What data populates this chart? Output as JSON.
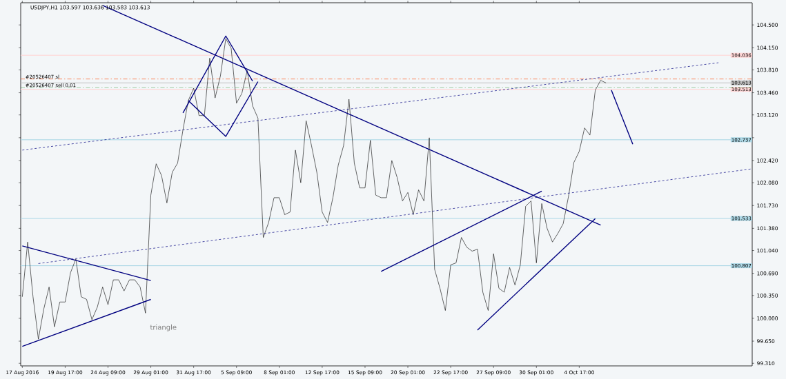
{
  "chart_data": {
    "type": "line",
    "title": "USDJPY,H1  103.597 103.636 103.583 103.613",
    "categories": [
      "17 Aug 2016",
      null,
      null,
      null,
      null,
      null,
      null,
      null,
      "19 Aug 17:00",
      null,
      null,
      null,
      null,
      null,
      null,
      null,
      "24 Aug 09:00",
      null,
      null,
      null,
      null,
      null,
      null,
      null,
      "29 Aug 01:00",
      null,
      null,
      null,
      null,
      null,
      null,
      null,
      "31 Aug 17:00",
      null,
      null,
      null,
      null,
      null,
      null,
      null,
      "5 Sep 09:00",
      null,
      null,
      null,
      null,
      null,
      null,
      null,
      "8 Sep 01:00",
      null,
      null,
      null,
      null,
      null,
      null,
      null,
      "12 Sep 17:00",
      null,
      null,
      null,
      null,
      null,
      null,
      null,
      "15 Sep 09:00",
      null,
      null,
      null,
      null,
      null,
      null,
      null,
      "20 Sep 01:00",
      null,
      null,
      null,
      null,
      null,
      null,
      null,
      "22 Sep 17:00",
      null,
      null,
      null,
      null,
      null,
      null,
      null,
      "27 Sep 09:00",
      null,
      null,
      null,
      null,
      null,
      null,
      null,
      "30 Sep 01:00",
      null,
      null,
      null,
      null,
      null,
      null,
      null,
      "4 Oct 17:00",
      null,
      null,
      null,
      null,
      null,
      null,
      null,
      null,
      null,
      null,
      null,
      null,
      null,
      null,
      null,
      null,
      null,
      null,
      null,
      null,
      null,
      null,
      null,
      null,
      null,
      null,
      null,
      null,
      null,
      null,
      null,
      null
    ],
    "ylim": [
      99.27,
      104.84
    ],
    "yticks": [
      {
        "value": 104.5,
        "label": "104.500"
      },
      {
        "value": 104.15,
        "label": "104.150"
      },
      {
        "value": 103.81,
        "label": "103.810"
      },
      {
        "value": 103.46,
        "label": "103.460"
      },
      {
        "value": 103.12,
        "label": "103.120"
      },
      {
        "value": 102.77,
        "label": null
      },
      {
        "value": 102.42,
        "label": "102.420"
      },
      {
        "value": 102.08,
        "label": "102.080"
      },
      {
        "value": 101.73,
        "label": "101.730"
      },
      {
        "value": 101.38,
        "label": "101.380"
      },
      {
        "value": 101.04,
        "label": "101.040"
      },
      {
        "value": 100.69,
        "label": "100.690"
      },
      {
        "value": 100.35,
        "label": "100.350"
      },
      {
        "value": 100.0,
        "label": "100.000"
      },
      {
        "value": 99.65,
        "label": "99.650"
      },
      {
        "value": 99.31,
        "label": "99.310"
      }
    ],
    "series": [
      {
        "color": "#000000",
        "values": [
          100.33,
          101.17,
          100.33,
          99.68,
          100.14,
          100.48,
          99.87,
          100.25,
          100.25,
          100.7,
          100.91,
          100.33,
          100.29,
          99.98,
          100.17,
          100.48,
          100.21,
          100.59,
          100.59,
          100.42,
          100.59,
          100.59,
          100.48,
          100.08,
          101.89,
          102.37,
          102.19,
          101.77,
          102.24,
          102.38,
          102.89,
          103.34,
          103.53,
          103.11,
          103.11,
          103.99,
          103.38,
          103.72,
          104.29,
          104.14,
          103.3,
          103.45,
          103.8,
          103.26,
          103.07,
          101.24,
          101.47,
          101.85,
          101.85,
          101.59,
          101.63,
          102.58,
          102.08,
          103.03,
          102.65,
          102.24,
          101.63,
          101.47,
          101.85,
          102.35,
          102.65,
          103.36,
          102.38,
          102.0,
          102.0,
          102.73,
          101.89,
          101.85,
          101.85,
          102.42,
          102.16,
          101.8,
          101.93,
          101.59,
          101.97,
          101.8,
          102.77,
          100.75,
          100.46,
          100.12,
          100.82,
          100.85,
          101.24,
          101.09,
          101.03,
          101.06,
          100.4,
          100.12,
          100.99,
          100.46,
          100.4,
          100.78,
          100.51,
          100.82,
          101.72,
          101.8,
          100.85,
          101.76,
          101.38,
          101.17,
          101.3,
          101.45,
          101.87,
          102.39,
          102.56,
          102.92,
          102.81,
          103.5,
          103.65,
          103.61,
          null,
          null,
          null,
          null,
          null,
          null,
          null,
          null,
          null,
          null,
          null,
          null,
          null,
          null,
          null,
          null,
          null,
          null,
          null,
          null,
          null,
          null,
          null,
          null,
          null,
          null,
          null
        ]
      },
      {
        "color": "#000080",
        "values": [
          null,
          null,
          null,
          null,
          null,
          null,
          null,
          null,
          null,
          null,
          null,
          null,
          null,
          null,
          null,
          104.8,
          null,
          null,
          null,
          null,
          null,
          null,
          null,
          null,
          null,
          null,
          null,
          null,
          null,
          null,
          null,
          null,
          null,
          null,
          null,
          null,
          null,
          null,
          null,
          null,
          null,
          null,
          null,
          null,
          null,
          null,
          null,
          null,
          null,
          null,
          null,
          null,
          null,
          null,
          null,
          null,
          null,
          null,
          null,
          null,
          null,
          null,
          null,
          null,
          null,
          null,
          null,
          null,
          null,
          null,
          null,
          null,
          null,
          null,
          null,
          null,
          null,
          null,
          null,
          null,
          null,
          null,
          null,
          null,
          null,
          null,
          null,
          null,
          null,
          null,
          null,
          null,
          null,
          null,
          null,
          null,
          null,
          null,
          null,
          null,
          null,
          null,
          null,
          null,
          null,
          null,
          null,
          null,
          101.43,
          null,
          null,
          null,
          null,
          null,
          null,
          null,
          null,
          null,
          null,
          null,
          null,
          null,
          null,
          null,
          null,
          null,
          null,
          null,
          null,
          null,
          null,
          null,
          null,
          null,
          null,
          null,
          null
        ]
      },
      {
        "color": "#000080",
        "values": [
          101.11,
          null,
          null,
          null,
          null,
          null,
          null,
          null,
          null,
          null,
          null,
          null,
          null,
          null,
          null,
          null,
          null,
          null,
          null,
          null,
          null,
          null,
          null,
          null,
          100.58,
          null,
          null,
          null,
          null,
          null,
          null,
          null,
          null,
          null,
          null,
          null,
          null,
          null,
          null,
          null,
          null,
          null,
          null,
          null,
          null,
          null,
          null,
          null,
          null,
          null,
          null,
          null,
          null,
          null,
          null,
          null,
          null,
          null,
          null,
          null,
          null,
          null,
          null,
          null,
          null,
          null,
          null,
          null,
          null,
          null,
          null,
          null,
          null,
          null,
          null,
          null,
          null,
          null,
          null,
          null,
          null,
          null,
          null,
          null,
          null,
          null,
          null,
          null,
          null,
          null,
          null,
          null,
          null,
          null,
          null,
          null,
          null,
          null,
          null,
          null,
          null,
          null,
          null,
          null,
          null,
          null,
          null,
          null,
          null,
          null,
          null,
          null,
          null,
          null,
          null,
          null,
          null,
          null,
          null,
          null,
          null,
          null,
          null,
          null,
          null,
          null,
          null,
          null,
          null,
          null,
          null,
          null,
          null,
          null,
          null,
          null,
          null
        ]
      },
      {
        "color": "#000080",
        "values": [
          99.57,
          null,
          null,
          null,
          null,
          null,
          null,
          null,
          null,
          null,
          null,
          null,
          null,
          null,
          null,
          null,
          null,
          null,
          null,
          null,
          null,
          null,
          null,
          null,
          100.29,
          null,
          null,
          null,
          null,
          null,
          null,
          null,
          null,
          null,
          null,
          null,
          null,
          null,
          null,
          null,
          null,
          null,
          null,
          null,
          null,
          null,
          null,
          null,
          null,
          null,
          null,
          null,
          null,
          null,
          null,
          null,
          null,
          null,
          null,
          null,
          null,
          null,
          null,
          null,
          null,
          null,
          null,
          null,
          null,
          null,
          null,
          null,
          null,
          null,
          null,
          null,
          null,
          null,
          null,
          null,
          null,
          null,
          null,
          null,
          null,
          null,
          null,
          null,
          null,
          null,
          null,
          null,
          null,
          null,
          null,
          null,
          null,
          null,
          null,
          null,
          null,
          null,
          null,
          null,
          null,
          null,
          null,
          null,
          null,
          null,
          null,
          null,
          null,
          null,
          null,
          null,
          null,
          null,
          null,
          null,
          null,
          null,
          null,
          null,
          null,
          null,
          null,
          null,
          null,
          null,
          null,
          null,
          null,
          null,
          null,
          null,
          null
        ]
      },
      {
        "color": "#000080",
        "line_style": "dashed",
        "values": [
          null,
          null,
          null,
          100.84,
          null,
          null,
          null,
          null,
          null,
          null,
          null,
          null,
          null,
          null,
          null,
          null,
          null,
          null,
          null,
          null,
          null,
          null,
          null,
          null,
          null,
          null,
          null,
          null,
          null,
          null,
          null,
          null,
          null,
          null,
          null,
          null,
          null,
          null,
          null,
          null,
          null,
          null,
          null,
          null,
          null,
          null,
          null,
          null,
          null,
          null,
          null,
          null,
          null,
          null,
          null,
          null,
          null,
          null,
          null,
          null,
          null,
          null,
          null,
          null,
          null,
          null,
          null,
          null,
          null,
          null,
          null,
          null,
          null,
          null,
          null,
          null,
          null,
          null,
          null,
          null,
          null,
          null,
          null,
          null,
          null,
          null,
          null,
          null,
          null,
          null,
          null,
          null,
          null,
          null,
          null,
          null,
          null,
          null,
          null,
          null,
          null,
          null,
          null,
          null,
          null,
          null,
          null,
          null,
          null,
          null,
          null,
          null,
          null,
          null,
          null,
          null,
          null,
          null,
          null,
          null,
          null,
          null,
          null,
          null,
          null,
          null,
          null,
          null,
          null,
          null,
          null,
          null,
          null,
          null,
          null,
          null,
          102.29
        ]
      },
      {
        "color": "#000080",
        "line_style": "dashed",
        "values": [
          102.58,
          null,
          null,
          null,
          null,
          null,
          null,
          null,
          null,
          null,
          null,
          null,
          null,
          null,
          null,
          null,
          null,
          null,
          null,
          null,
          null,
          null,
          null,
          null,
          null,
          null,
          null,
          null,
          null,
          null,
          null,
          null,
          null,
          null,
          null,
          null,
          null,
          null,
          null,
          null,
          null,
          null,
          null,
          null,
          null,
          null,
          null,
          null,
          null,
          null,
          null,
          null,
          null,
          null,
          null,
          null,
          null,
          null,
          null,
          null,
          null,
          null,
          null,
          null,
          null,
          null,
          null,
          null,
          null,
          null,
          null,
          null,
          null,
          null,
          null,
          null,
          null,
          null,
          null,
          null,
          null,
          null,
          null,
          null,
          null,
          null,
          null,
          null,
          null,
          null,
          null,
          null,
          null,
          null,
          null,
          null,
          null,
          null,
          null,
          null,
          null,
          null,
          null,
          null,
          null,
          null,
          null,
          null,
          null,
          null,
          null,
          null,
          null,
          null,
          null,
          null,
          null,
          null,
          null,
          null,
          null,
          null,
          null,
          null,
          null,
          null,
          null,
          null,
          null,
          null,
          103.92,
          null,
          null,
          null,
          null,
          null,
          null
        ]
      },
      {
        "color": "#000080",
        "values": [
          null,
          null,
          null,
          null,
          null,
          null,
          null,
          null,
          null,
          null,
          null,
          null,
          null,
          null,
          null,
          null,
          null,
          null,
          null,
          null,
          null,
          null,
          null,
          null,
          null,
          null,
          null,
          null,
          null,
          null,
          103.15,
          null,
          null,
          null,
          null,
          null,
          null,
          null,
          104.33,
          null,
          null,
          null,
          null,
          103.64,
          null,
          null,
          null,
          null,
          null,
          null,
          null,
          null,
          null,
          null,
          null,
          null,
          null,
          null,
          null,
          null,
          null,
          null,
          null,
          null,
          null,
          null,
          null,
          null,
          null,
          null,
          null,
          null,
          null,
          null,
          null,
          null,
          null,
          null,
          null,
          null,
          null,
          null,
          null,
          null,
          null,
          null,
          null,
          null,
          null,
          null,
          null,
          null,
          null,
          null,
          null,
          null,
          null,
          null,
          null,
          null,
          null,
          null,
          null,
          null,
          null,
          null,
          null,
          null,
          null,
          null,
          null,
          null,
          null,
          null,
          null,
          null,
          null,
          null,
          null,
          null,
          null,
          null,
          null,
          null,
          null,
          null,
          null,
          null,
          null,
          null,
          null,
          null,
          null,
          null,
          null,
          null,
          null
        ]
      },
      {
        "color": "#000080",
        "values": [
          null,
          null,
          null,
          null,
          null,
          null,
          null,
          null,
          null,
          null,
          null,
          null,
          null,
          null,
          null,
          null,
          null,
          null,
          null,
          null,
          null,
          null,
          null,
          null,
          null,
          null,
          null,
          null,
          null,
          null,
          null,
          103.34,
          null,
          null,
          null,
          null,
          null,
          null,
          102.79,
          null,
          null,
          null,
          null,
          null,
          103.63,
          null,
          null,
          null,
          null,
          null,
          null,
          null,
          null,
          null,
          null,
          null,
          null,
          null,
          null,
          null,
          null,
          null,
          null,
          null,
          null,
          null,
          null,
          null,
          null,
          null,
          null,
          null,
          null,
          null,
          null,
          null,
          null,
          null,
          null,
          null,
          null,
          null,
          null,
          null,
          null,
          null,
          null,
          null,
          null,
          null,
          null,
          null,
          null,
          null,
          null,
          null,
          null,
          null,
          null,
          null,
          null,
          null,
          null,
          null,
          null,
          null,
          null,
          null,
          null,
          null,
          null,
          null,
          null,
          null,
          null,
          null,
          null,
          null,
          null,
          null,
          null,
          null,
          null,
          null,
          null,
          null,
          null,
          null,
          null,
          null,
          null,
          null,
          null,
          null,
          null,
          null,
          null
        ]
      },
      {
        "color": "#000080",
        "values": [
          null,
          null,
          null,
          null,
          null,
          null,
          null,
          null,
          null,
          null,
          null,
          null,
          null,
          null,
          null,
          null,
          null,
          null,
          null,
          null,
          null,
          null,
          null,
          null,
          null,
          null,
          null,
          null,
          null,
          null,
          null,
          null,
          null,
          null,
          null,
          null,
          null,
          null,
          null,
          null,
          null,
          null,
          null,
          null,
          null,
          null,
          null,
          null,
          null,
          null,
          null,
          null,
          null,
          null,
          null,
          null,
          null,
          null,
          null,
          null,
          null,
          null,
          null,
          null,
          null,
          null,
          null,
          100.72,
          null,
          null,
          null,
          null,
          null,
          null,
          null,
          null,
          null,
          null,
          null,
          null,
          null,
          null,
          null,
          null,
          null,
          null,
          null,
          null,
          null,
          null,
          null,
          null,
          null,
          null,
          null,
          null,
          null,
          101.95,
          null,
          null,
          null,
          null,
          null,
          null,
          null,
          null,
          null,
          null,
          null,
          null,
          null,
          null,
          null,
          null,
          null,
          null,
          null,
          null,
          null,
          null,
          null,
          null,
          null,
          null,
          null,
          null,
          null,
          null,
          null,
          null,
          null,
          null,
          null,
          null,
          null,
          null,
          null
        ]
      },
      {
        "color": "#000080",
        "values": [
          null,
          null,
          null,
          null,
          null,
          null,
          null,
          null,
          null,
          null,
          null,
          null,
          null,
          null,
          null,
          null,
          null,
          null,
          null,
          null,
          null,
          null,
          null,
          null,
          null,
          null,
          null,
          null,
          null,
          null,
          null,
          null,
          null,
          null,
          null,
          null,
          null,
          null,
          null,
          null,
          null,
          null,
          null,
          null,
          null,
          null,
          null,
          null,
          null,
          null,
          null,
          null,
          null,
          null,
          null,
          null,
          null,
          null,
          null,
          null,
          null,
          null,
          null,
          null,
          null,
          null,
          null,
          null,
          null,
          null,
          null,
          null,
          null,
          null,
          null,
          null,
          null,
          null,
          null,
          null,
          null,
          null,
          null,
          null,
          null,
          99.82,
          null,
          null,
          null,
          null,
          null,
          null,
          null,
          null,
          null,
          null,
          null,
          null,
          null,
          null,
          null,
          null,
          null,
          null,
          null,
          null,
          null,
          101.53,
          null,
          null,
          null,
          null,
          null,
          null,
          null,
          null,
          null,
          null,
          null,
          null,
          null,
          null,
          null,
          null,
          null,
          null,
          null,
          null,
          null,
          null,
          null,
          null,
          null,
          null,
          null,
          null,
          null
        ]
      },
      {
        "color": "#000080",
        "values": [
          null,
          null,
          null,
          null,
          null,
          null,
          null,
          null,
          null,
          null,
          null,
          null,
          null,
          null,
          null,
          null,
          null,
          null,
          null,
          null,
          null,
          null,
          null,
          null,
          null,
          null,
          null,
          null,
          null,
          null,
          null,
          null,
          null,
          null,
          null,
          null,
          null,
          null,
          null,
          null,
          null,
          null,
          null,
          null,
          null,
          null,
          null,
          null,
          null,
          null,
          null,
          null,
          null,
          null,
          null,
          null,
          null,
          null,
          null,
          null,
          null,
          null,
          null,
          null,
          null,
          null,
          null,
          null,
          null,
          null,
          null,
          null,
          null,
          null,
          null,
          null,
          null,
          null,
          null,
          null,
          null,
          null,
          null,
          null,
          null,
          null,
          null,
          null,
          null,
          null,
          null,
          null,
          null,
          null,
          null,
          null,
          null,
          null,
          null,
          null,
          null,
          null,
          null,
          null,
          null,
          null,
          null,
          null,
          null,
          null,
          103.5,
          null,
          null,
          null,
          102.67,
          null,
          null,
          null,
          null,
          null,
          null,
          null,
          null,
          null,
          null,
          null,
          null,
          null,
          null,
          null,
          null,
          null,
          null,
          null,
          null,
          null,
          null
        ]
      }
    ],
    "ref_lines": [
      {
        "axis": "y",
        "value": 104.036,
        "label": "104.036",
        "color": "#ffd6d6",
        "line_style": "solid"
      },
      {
        "axis": "y",
        "value": 103.613,
        "label": "103.613",
        "color": "#c0c0c0",
        "line_style": "solid"
      },
      {
        "axis": "y",
        "value": 103.513,
        "label": "103.513",
        "color": "#ffd6d6",
        "line_style": "solid"
      },
      {
        "axis": "y",
        "value": 102.737,
        "label": "102.737",
        "color": "#add8e6",
        "line_style": "solid"
      },
      {
        "axis": "y",
        "value": 101.533,
        "label": "101.533",
        "color": "#add8e6",
        "line_style": "solid"
      },
      {
        "axis": "y",
        "value": 100.807,
        "label": "100.807",
        "color": "#add8e6",
        "line_style": "solid"
      },
      {
        "axis": "y",
        "value": 103.67,
        "label": "#20526407 sl",
        "color": "#ff4500",
        "line_style": "dashed"
      },
      {
        "axis": "y",
        "value": 103.54,
        "label": "#20526407 sell 0.01",
        "color": "#008000",
        "line_style": "dashed"
      }
    ],
    "annotations": [
      "triangle"
    ],
    "grid": false,
    "marker": "none"
  }
}
